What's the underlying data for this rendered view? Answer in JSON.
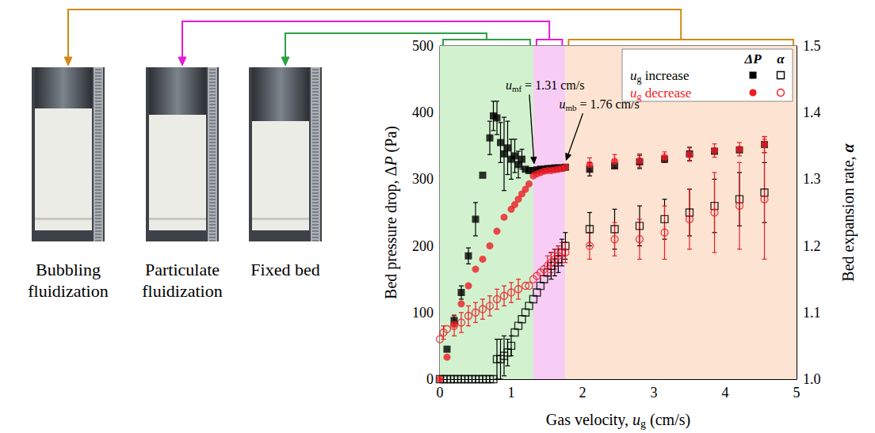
{
  "chart_data": {
    "type": "scatter",
    "grid": false,
    "legend": "upper right",
    "x_label": [
      {
        "text": "Gas velocity, "
      },
      {
        "text": "u",
        "style": "italic"
      },
      {
        "text": "g",
        "style": "sub"
      },
      {
        "text": " (cm/s)"
      }
    ],
    "y_label": [
      {
        "text": "Bed pressure drop, Δ"
      },
      {
        "text": "P",
        "style": "italic"
      },
      {
        "text": " (Pa)"
      }
    ],
    "y2_label": [
      {
        "text": "Bed expansion rate, "
      },
      {
        "text": "α",
        "style": "bold-italic"
      }
    ],
    "xlim": [
      0,
      5
    ],
    "xticks": [
      0,
      1,
      2,
      3,
      4,
      5
    ],
    "ylim": [
      0,
      500
    ],
    "yticks": [
      0,
      100,
      200,
      300,
      400,
      500
    ],
    "y2lim": [
      1.0,
      1.5
    ],
    "y2ticks": [
      {
        "value": 1.0,
        "label": "1.0"
      },
      1.1,
      1.2,
      1.3,
      1.4,
      1.5
    ],
    "legend_columns": [
      "ΔP",
      "α"
    ],
    "legend_rows": [
      {
        "label": [
          {
            "text": "u",
            "style": "italic"
          },
          {
            "text": "g",
            "style": "sub"
          },
          {
            "text": " increase"
          }
        ],
        "color": "#000000"
      },
      {
        "label": [
          {
            "text": "u",
            "style": "italic"
          },
          {
            "text": "g",
            "style": "sub"
          },
          {
            "text": " decrease"
          }
        ],
        "color": "#ee1c25"
      }
    ],
    "regions": [
      {
        "from": 0,
        "to": 1.31,
        "color": "#d2f2cf",
        "bracket_color": "#2ea043",
        "regime": "Fixed bed"
      },
      {
        "from": 1.31,
        "to": 1.76,
        "color": "#f8cdf5",
        "bracket_color": "#e619d6",
        "regime": "Particulate fluidization"
      },
      {
        "from": 1.76,
        "to": 5,
        "color": "#fde4d2",
        "bracket_color": "#cf8a1a",
        "regime": "Bubbling fluidization"
      }
    ],
    "photos": [
      "Bubbling fluidization",
      "Particulate fluidization",
      "Fixed bed"
    ],
    "annotations": [
      {
        "x": 1.31,
        "y": 313,
        "label": [
          {
            "text": "u",
            "style": "italic"
          },
          {
            "text": "mf",
            "style": "sub"
          },
          {
            "text": " = 1.31 cm/s"
          }
        ]
      },
      {
        "x": 1.76,
        "y": 318,
        "label": [
          {
            "text": "u",
            "style": "italic"
          },
          {
            "text": "mb",
            "style": "sub"
          },
          {
            "text": " = 1.76 cm/s"
          }
        ]
      }
    ],
    "series": [
      {
        "column": "ΔP",
        "color": "#000000",
        "marker": "filled-square",
        "axis": "y",
        "x": [
          0.1,
          0.2,
          0.3,
          0.4,
          0.5,
          0.6,
          0.7,
          0.75,
          0.8,
          0.85,
          0.9,
          0.95,
          1.0,
          1.05,
          1.1,
          1.15,
          1.2,
          1.25,
          1.31,
          1.36,
          1.41,
          1.46,
          1.51,
          1.56,
          1.61,
          1.66,
          1.71,
          1.76,
          2.1,
          2.45,
          2.8,
          3.15,
          3.5,
          3.85,
          4.2,
          4.55
        ],
        "values": [
          45,
          88,
          130,
          185,
          240,
          306,
          362,
          395,
          392,
          355,
          338,
          347,
          330,
          335,
          322,
          330,
          315,
          313,
          313,
          314,
          315,
          315,
          316,
          316,
          317,
          317,
          317,
          318,
          315,
          320,
          326,
          330,
          338,
          342,
          344,
          352
        ],
        "errors": [
          null,
          8,
          10,
          12,
          25,
          null,
          25,
          22,
          25,
          30,
          55,
          40,
          30,
          25,
          20,
          15,
          null,
          null,
          null,
          null,
          null,
          null,
          null,
          null,
          null,
          null,
          null,
          null,
          10,
          null,
          10,
          null,
          10,
          null,
          null,
          12
        ]
      },
      {
        "column": "ΔP",
        "color": "#ee1c25",
        "marker": "filled-circle",
        "axis": "y",
        "x": [
          0,
          0.1,
          0.2,
          0.3,
          0.4,
          0.5,
          0.6,
          0.7,
          0.8,
          0.9,
          1.0,
          1.05,
          1.1,
          1.15,
          1.2,
          1.25,
          1.31,
          1.36,
          1.41,
          1.46,
          1.51,
          1.56,
          1.61,
          1.66,
          1.71,
          1.76,
          2.1,
          2.45,
          2.8,
          3.15,
          3.5,
          3.85,
          4.2,
          4.55
        ],
        "values": [
          0,
          33,
          82,
          113,
          140,
          165,
          180,
          200,
          222,
          243,
          255,
          262,
          270,
          278,
          285,
          293,
          305,
          308,
          310,
          312,
          313,
          313,
          314,
          315,
          316,
          318,
          322,
          327,
          328,
          333,
          337,
          343,
          345,
          352
        ],
        "errors": [
          null,
          null,
          null,
          null,
          null,
          null,
          null,
          null,
          null,
          null,
          null,
          null,
          null,
          null,
          null,
          null,
          null,
          null,
          null,
          null,
          null,
          null,
          null,
          null,
          null,
          null,
          10,
          10,
          10,
          8,
          10,
          10,
          10,
          12
        ]
      },
      {
        "column": "α",
        "color": "#000000",
        "marker": "open-square",
        "axis": "y2",
        "x": [
          0,
          0.05,
          0.1,
          0.15,
          0.2,
          0.25,
          0.3,
          0.35,
          0.4,
          0.45,
          0.5,
          0.55,
          0.6,
          0.65,
          0.7,
          0.75,
          0.8,
          0.85,
          0.9,
          0.95,
          1.0,
          1.05,
          1.1,
          1.15,
          1.2,
          1.25,
          1.31,
          1.36,
          1.41,
          1.46,
          1.51,
          1.56,
          1.61,
          1.66,
          1.71,
          1.76,
          2.1,
          2.45,
          2.8,
          3.15,
          3.5,
          3.85,
          4.2,
          4.55
        ],
        "values": [
          1.0,
          1.0,
          1.0,
          1.0,
          1.0,
          1.0,
          1.0,
          1.0,
          1.0,
          1.0,
          1.0,
          1.0,
          1.0,
          1.0,
          1.0,
          1.0,
          1.03,
          1.03,
          1.035,
          1.04,
          1.05,
          1.07,
          1.08,
          1.09,
          1.1,
          1.11,
          1.12,
          1.13,
          1.14,
          1.15,
          1.16,
          1.17,
          1.175,
          1.18,
          1.19,
          1.2,
          1.225,
          1.225,
          1.23,
          1.24,
          1.25,
          1.26,
          1.27,
          1.28
        ],
        "errors": [
          null,
          null,
          null,
          null,
          null,
          null,
          null,
          null,
          null,
          null,
          null,
          null,
          null,
          null,
          null,
          null,
          0.03,
          0.03,
          0.03,
          0.02,
          0.015,
          null,
          null,
          null,
          null,
          null,
          null,
          null,
          null,
          null,
          null,
          0.02,
          0.02,
          0.02,
          0.02,
          0.02,
          0.025,
          0.03,
          0.03,
          0.03,
          0.035,
          0.04,
          0.04,
          0.045
        ]
      },
      {
        "column": "α",
        "color": "#ee1c25",
        "marker": "open-circle",
        "axis": "y2",
        "x": [
          0,
          0.05,
          0.1,
          0.2,
          0.3,
          0.4,
          0.5,
          0.6,
          0.7,
          0.8,
          0.9,
          1.0,
          1.1,
          1.2,
          1.25,
          1.31,
          1.36,
          1.41,
          1.46,
          1.51,
          1.56,
          1.61,
          1.66,
          1.71,
          1.76,
          2.1,
          2.45,
          2.8,
          3.15,
          3.5,
          3.85,
          4.2,
          4.55
        ],
        "values": [
          1.06,
          1.07,
          1.075,
          1.08,
          1.085,
          1.095,
          1.1,
          1.105,
          1.11,
          1.12,
          1.125,
          1.13,
          1.135,
          1.14,
          1.14,
          1.15,
          1.155,
          1.16,
          1.165,
          1.17,
          1.175,
          1.18,
          1.185,
          1.19,
          1.19,
          1.2,
          1.21,
          1.21,
          1.22,
          1.24,
          1.25,
          1.26,
          1.27
        ],
        "errors": [
          null,
          0.01,
          null,
          0.015,
          0.015,
          0.015,
          0.015,
          0.015,
          0.015,
          0.015,
          0.015,
          0.015,
          0.015,
          null,
          null,
          null,
          null,
          null,
          null,
          0.015,
          0.015,
          0.015,
          0.015,
          0.015,
          0.015,
          0.02,
          0.025,
          0.03,
          0.04,
          0.045,
          0.06,
          0.065,
          0.09
        ]
      }
    ]
  }
}
